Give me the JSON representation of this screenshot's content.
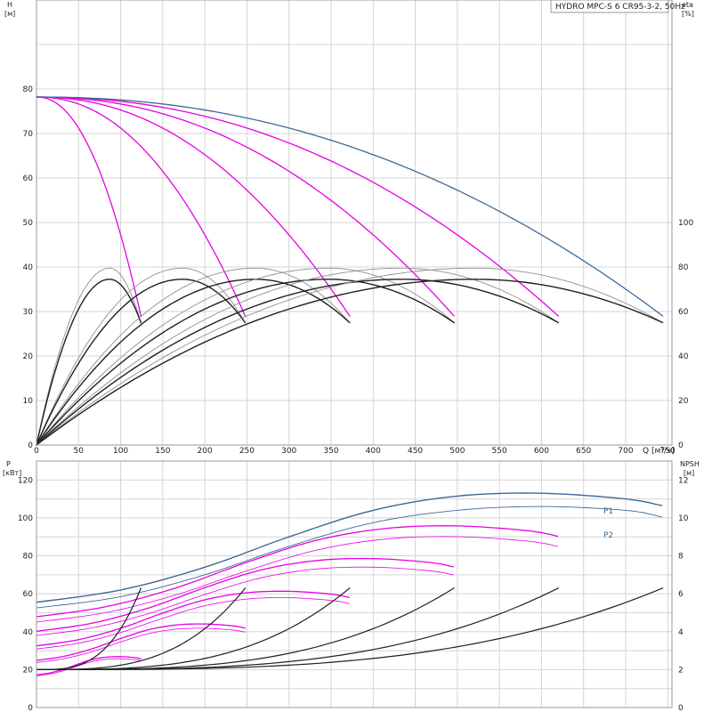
{
  "title_box": "HYDRO MPC-S 6 CR95-3-2, 50Hz",
  "chart_data": [
    {
      "type": "line",
      "panel": "head-efficiency",
      "xlabel": "Q [м³/ч]",
      "ylabel_left": {
        "line1": "H",
        "line2": "[м]"
      },
      "ylabel_right": {
        "line1": "eta",
        "line2": "[%]"
      },
      "xlim": [
        0,
        755
      ],
      "ylim_left": [
        0,
        100
      ],
      "ylim_right": [
        0,
        200
      ],
      "x_ticks": [
        "0",
        "50",
        "100",
        "150",
        "200",
        "250",
        "300",
        "350",
        "400",
        "450",
        "500",
        "550",
        "600",
        "650",
        "700",
        "750"
      ],
      "y_ticks_left": [
        "0",
        "10",
        "20",
        "30",
        "40",
        "50",
        "60",
        "70",
        "80"
      ],
      "y_ticks_right": [
        "0",
        "20",
        "40",
        "60",
        "80",
        "100"
      ],
      "grid": true,
      "colors": {
        "bep_curve": "#3d6a96",
        "speed_curve": "#e600e6",
        "eff_curve": "#202020",
        "eff_light": "#909090"
      },
      "head_curves": {
        "shutoff_head": 78.2,
        "max_flow_per_pump": 124,
        "min_head": 29.0,
        "pumps": [
          1,
          2,
          3,
          4,
          5,
          6
        ]
      },
      "efficiency_curves": {
        "peak_eta_thick": 74.5,
        "peak_eta_thin": 79.5,
        "end_eta": 55.0,
        "pumps": [
          1,
          2,
          3,
          4,
          5,
          6
        ]
      }
    },
    {
      "type": "line",
      "panel": "power-npsh",
      "ylabel_left": {
        "line1": "P",
        "line2": "[кВт]"
      },
      "ylabel_right": {
        "line1": "NPSH",
        "line2": "[м]"
      },
      "xlim": [
        0,
        755
      ],
      "ylim_left": [
        0,
        130
      ],
      "ylim_right": [
        0,
        13
      ],
      "y_ticks_left": [
        "0",
        "20",
        "40",
        "60",
        "80",
        "100",
        "120"
      ],
      "y_ticks_right": [
        "0",
        "2",
        "4",
        "6",
        "8",
        "10",
        "12"
      ],
      "grid": true,
      "series_labels": [
        "P1",
        "P2"
      ],
      "p1_points": [
        [
          0,
          55.5
        ],
        [
          100,
          62
        ],
        [
          200,
          74
        ],
        [
          300,
          90
        ],
        [
          400,
          104
        ],
        [
          500,
          111.5
        ],
        [
          600,
          113
        ],
        [
          700,
          110
        ],
        [
          743,
          106.5
        ]
      ],
      "p2_points": [
        [
          0,
          52.5
        ],
        [
          100,
          58.5
        ],
        [
          200,
          70
        ],
        [
          300,
          85
        ],
        [
          400,
          97.5
        ],
        [
          500,
          104
        ],
        [
          600,
          106
        ],
        [
          700,
          104
        ],
        [
          743,
          100.5
        ]
      ],
      "npsh": {
        "start": 2.0,
        "end": 6.3
      }
    }
  ]
}
